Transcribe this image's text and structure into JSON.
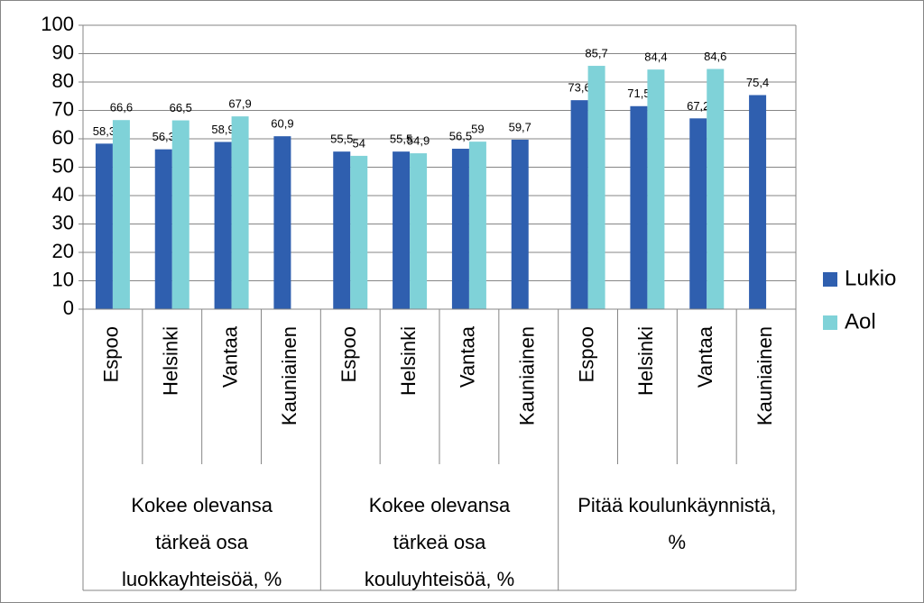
{
  "chart_data": {
    "type": "bar",
    "groups": [
      {
        "label": "Kokee olevansa tärkeä osa luokkayhteisöä, %",
        "categories": [
          "Espoo",
          "Helsinki",
          "Vantaa",
          "Kauniainen"
        ]
      },
      {
        "label": "Kokee olevansa tärkeä osa kouluyhteisöä, %",
        "categories": [
          "Espoo",
          "Helsinki",
          "Vantaa",
          "Kauniainen"
        ]
      },
      {
        "label": "Pitää koulunkäynnistä, %",
        "categories": [
          "Espoo",
          "Helsinki",
          "Vantaa",
          "Kauniainen"
        ]
      }
    ],
    "series": [
      {
        "name": "Lukio",
        "color": "#2f5faf",
        "values": [
          58.3,
          56.3,
          58.9,
          60.9,
          55.5,
          55.5,
          56.5,
          59.7,
          73.6,
          71.5,
          67.2,
          75.4
        ],
        "value_labels": [
          "58,3",
          "56,3",
          "58,9",
          "60,9",
          "55,5",
          "55,5",
          "56,5",
          "59,7",
          "73,6",
          "71,5",
          "67,2",
          "75,4"
        ]
      },
      {
        "name": "Aol",
        "color": "#7fd2d8",
        "values": [
          66.6,
          66.5,
          67.9,
          null,
          54,
          54.9,
          59,
          null,
          85.7,
          84.4,
          84.6,
          null
        ],
        "value_labels": [
          "66,6",
          "66,5",
          "67,9",
          null,
          "54",
          "54,9",
          "59",
          null,
          "85,7",
          "84,4",
          "84,6",
          null
        ]
      }
    ],
    "ylim": [
      0,
      100
    ],
    "yticks": [
      0,
      10,
      20,
      30,
      40,
      50,
      60,
      70,
      80,
      90,
      100
    ],
    "grid": true,
    "legend": "right"
  }
}
